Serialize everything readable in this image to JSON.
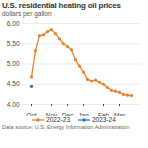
{
  "chart_data": {
    "type": "line",
    "title": "U.S. residential heating oil prices",
    "subtitle": "dollars per gallon",
    "caption": "Data source: U.S. Energy Information Administration",
    "categories": [
      "Oct",
      null,
      null,
      null,
      null,
      "Nov",
      null,
      null,
      null,
      "Dec",
      null,
      null,
      null,
      "Jan",
      null,
      null,
      null,
      null,
      "Feb",
      null,
      null,
      null,
      "Mar",
      null,
      null,
      null
    ],
    "series": [
      {
        "name": "2022-23",
        "color": "#e8822f",
        "marker": "circle",
        "line_style": "solid",
        "values": [
          4.68,
          5.33,
          5.7,
          5.72,
          5.8,
          5.85,
          5.75,
          5.62,
          5.5,
          5.43,
          5.35,
          5.1,
          4.95,
          4.8,
          4.62,
          4.58,
          4.6,
          4.55,
          4.5,
          4.42,
          4.35,
          4.33,
          4.3,
          4.25,
          4.23,
          4.22
        ]
      },
      {
        "name": "2023-24",
        "color": "#1f77c8",
        "marker": "circle",
        "line_style": "solid",
        "values": [
          4.45,
          null,
          null,
          null,
          null,
          null,
          null,
          null,
          null,
          null,
          null,
          null,
          null,
          null,
          null,
          null,
          null,
          null,
          null,
          null,
          null,
          null,
          null,
          null,
          null,
          null
        ]
      }
    ],
    "ylim": [
      4.0,
      6.0
    ],
    "yticks": [
      {
        "value": 4.0,
        "label": "4.00"
      },
      {
        "value": 4.5,
        "label": "4.50"
      },
      {
        "value": 5.0,
        "label": "5.00"
      },
      {
        "value": 5.5,
        "label": "5.50"
      },
      {
        "value": 6.0,
        "label": "6.00"
      }
    ],
    "grid": true,
    "legend": "bottom"
  }
}
